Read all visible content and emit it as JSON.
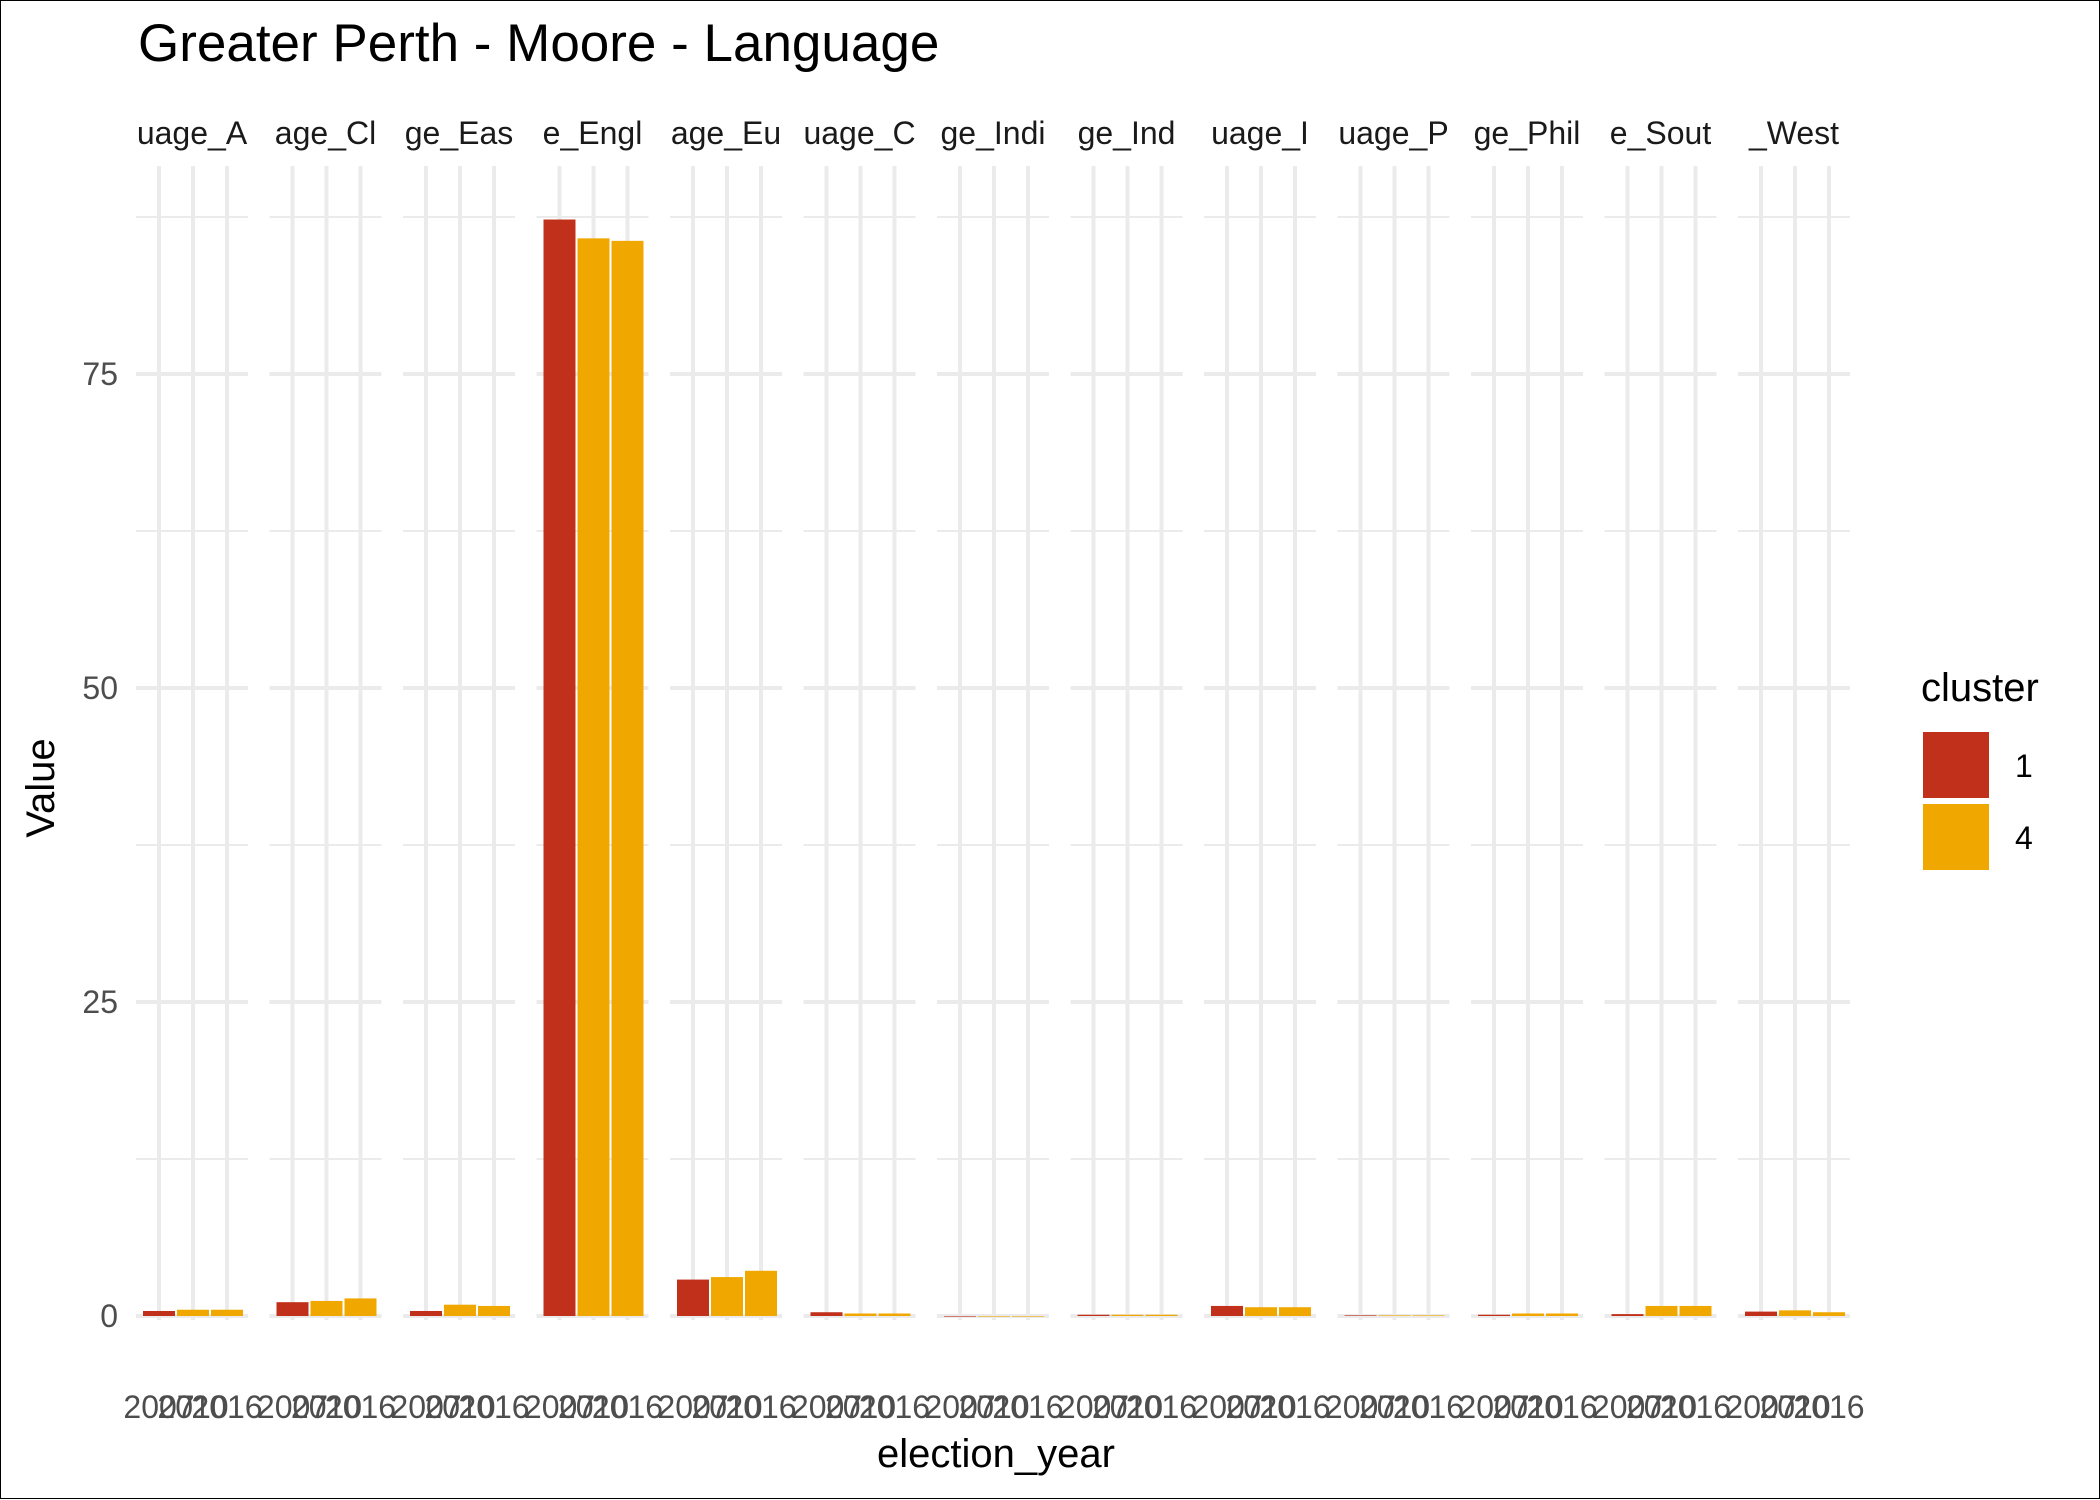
{
  "chart_data": {
    "type": "bar",
    "title": "Greater Perth - Moore - Language",
    "xlabel": "election_year",
    "ylabel": "Value",
    "ylim": [
      0,
      91
    ],
    "yticks": [
      0,
      25,
      50,
      75
    ],
    "grid": true,
    "legend": {
      "title": "cluster",
      "position": "right",
      "entries": [
        {
          "label": "1",
          "color": "#C0301A"
        },
        {
          "label": "4",
          "color": "#F0A800"
        }
      ]
    },
    "x_tick_labels": [
      "2007",
      "2010",
      "2016"
    ],
    "facets": [
      {
        "strip": "uage_A",
        "bars": [
          {
            "year": "2007",
            "cluster": "1",
            "value": 0.4
          },
          {
            "year": "2010",
            "cluster": "4",
            "value": 0.5
          },
          {
            "year": "2016",
            "cluster": "4",
            "value": 0.5
          }
        ]
      },
      {
        "strip": "age_Cl",
        "bars": [
          {
            "year": "2007",
            "cluster": "1",
            "value": 1.1
          },
          {
            "year": "2010",
            "cluster": "4",
            "value": 1.2
          },
          {
            "year": "2016",
            "cluster": "4",
            "value": 1.4
          }
        ]
      },
      {
        "strip": "ge_Eas",
        "bars": [
          {
            "year": "2007",
            "cluster": "1",
            "value": 0.4
          },
          {
            "year": "2010",
            "cluster": "4",
            "value": 0.9
          },
          {
            "year": "2016",
            "cluster": "4",
            "value": 0.8
          }
        ]
      },
      {
        "strip": "e_Engl",
        "bars": [
          {
            "year": "2007",
            "cluster": "1",
            "value": 87.3
          },
          {
            "year": "2010",
            "cluster": "4",
            "value": 85.8
          },
          {
            "year": "2016",
            "cluster": "4",
            "value": 85.6
          }
        ]
      },
      {
        "strip": "age_Eu",
        "bars": [
          {
            "year": "2007",
            "cluster": "1",
            "value": 2.9
          },
          {
            "year": "2010",
            "cluster": "4",
            "value": 3.1
          },
          {
            "year": "2016",
            "cluster": "4",
            "value": 3.6
          }
        ]
      },
      {
        "strip": "uage_C",
        "bars": [
          {
            "year": "2007",
            "cluster": "1",
            "value": 0.3
          },
          {
            "year": "2010",
            "cluster": "4",
            "value": 0.2
          },
          {
            "year": "2016",
            "cluster": "4",
            "value": 0.2
          }
        ]
      },
      {
        "strip": "ge_Indi",
        "bars": [
          {
            "year": "2007",
            "cluster": "1",
            "value": 0.0
          },
          {
            "year": "2010",
            "cluster": "4",
            "value": 0.0
          },
          {
            "year": "2016",
            "cluster": "4",
            "value": 0.0
          }
        ]
      },
      {
        "strip": "ge_Ind",
        "bars": [
          {
            "year": "2007",
            "cluster": "1",
            "value": 0.1
          },
          {
            "year": "2010",
            "cluster": "4",
            "value": 0.1
          },
          {
            "year": "2016",
            "cluster": "4",
            "value": 0.1
          }
        ]
      },
      {
        "strip": "uage_I",
        "bars": [
          {
            "year": "2007",
            "cluster": "1",
            "value": 0.8
          },
          {
            "year": "2010",
            "cluster": "4",
            "value": 0.7
          },
          {
            "year": "2016",
            "cluster": "4",
            "value": 0.7
          }
        ]
      },
      {
        "strip": "uage_P",
        "bars": [
          {
            "year": "2007",
            "cluster": "1",
            "value": 0.05
          },
          {
            "year": "2010",
            "cluster": "4",
            "value": 0.05
          },
          {
            "year": "2016",
            "cluster": "4",
            "value": 0.05
          }
        ]
      },
      {
        "strip": "ge_Phil",
        "bars": [
          {
            "year": "2007",
            "cluster": "1",
            "value": 0.1
          },
          {
            "year": "2010",
            "cluster": "4",
            "value": 0.2
          },
          {
            "year": "2016",
            "cluster": "4",
            "value": 0.2
          }
        ]
      },
      {
        "strip": "e_Sout",
        "bars": [
          {
            "year": "2007",
            "cluster": "1",
            "value": 0.15
          },
          {
            "year": "2010",
            "cluster": "4",
            "value": 0.8
          },
          {
            "year": "2016",
            "cluster": "4",
            "value": 0.8
          }
        ]
      },
      {
        "strip": "_West",
        "bars": [
          {
            "year": "2007",
            "cluster": "1",
            "value": 0.35
          },
          {
            "year": "2010",
            "cluster": "4",
            "value": 0.45
          },
          {
            "year": "2016",
            "cluster": "4",
            "value": 0.3
          }
        ]
      }
    ]
  }
}
